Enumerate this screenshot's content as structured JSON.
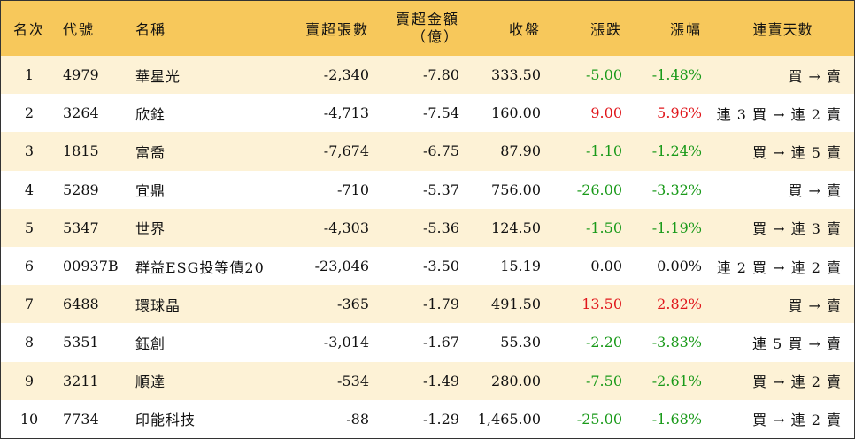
{
  "columns": {
    "rank": "名次",
    "code": "代號",
    "name": "名稱",
    "net_sell_lots": "賣超張數",
    "net_sell_amount_l1": "賣超金額",
    "net_sell_amount_l2": "（億）",
    "close": "收盤",
    "change": "漲跌",
    "change_pct": "漲幅",
    "consecutive_days": "連賣天數"
  },
  "colors": {
    "header_bg": "#f7c85b",
    "stripe_bg": "#fdf2d6",
    "up": "#e0161b",
    "down": "#1a9a1a"
  },
  "rows": [
    {
      "rank": "1",
      "code": "4979",
      "name": "華星光",
      "lots": "-2,340",
      "amount": "-7.80",
      "close": "333.50",
      "change": "-5.00",
      "pct": "-1.48%",
      "days": "買 → 賣",
      "trend": "down"
    },
    {
      "rank": "2",
      "code": "3264",
      "name": "欣銓",
      "lots": "-4,713",
      "amount": "-7.54",
      "close": "160.00",
      "change": "9.00",
      "pct": "5.96%",
      "days": "連 3 買 → 連 2 賣",
      "trend": "up"
    },
    {
      "rank": "3",
      "code": "1815",
      "name": "富喬",
      "lots": "-7,674",
      "amount": "-6.75",
      "close": "87.90",
      "change": "-1.10",
      "pct": "-1.24%",
      "days": "買 → 連 5 賣",
      "trend": "down"
    },
    {
      "rank": "4",
      "code": "5289",
      "name": "宜鼎",
      "lots": "-710",
      "amount": "-5.37",
      "close": "756.00",
      "change": "-26.00",
      "pct": "-3.32%",
      "days": "買 → 賣",
      "trend": "down"
    },
    {
      "rank": "5",
      "code": "5347",
      "name": "世界",
      "lots": "-4,303",
      "amount": "-5.36",
      "close": "124.50",
      "change": "-1.50",
      "pct": "-1.19%",
      "days": "買 → 連 3 賣",
      "trend": "down"
    },
    {
      "rank": "6",
      "code": "00937B",
      "name": "群益ESG投等債20",
      "lots": "-23,046",
      "amount": "-3.50",
      "close": "15.19",
      "change": "0.00",
      "pct": "0.00%",
      "days": "連 2 買 → 連 2 賣",
      "trend": "neutral"
    },
    {
      "rank": "7",
      "code": "6488",
      "name": "環球晶",
      "lots": "-365",
      "amount": "-1.79",
      "close": "491.50",
      "change": "13.50",
      "pct": "2.82%",
      "days": "買 → 賣",
      "trend": "up"
    },
    {
      "rank": "8",
      "code": "5351",
      "name": "鈺創",
      "lots": "-3,014",
      "amount": "-1.67",
      "close": "55.30",
      "change": "-2.20",
      "pct": "-3.83%",
      "days": "連 5 買 → 賣",
      "trend": "down"
    },
    {
      "rank": "9",
      "code": "3211",
      "name": "順達",
      "lots": "-534",
      "amount": "-1.49",
      "close": "280.00",
      "change": "-7.50",
      "pct": "-2.61%",
      "days": "買 → 連 2 賣",
      "trend": "down"
    },
    {
      "rank": "10",
      "code": "7734",
      "name": "印能科技",
      "lots": "-88",
      "amount": "-1.29",
      "close": "1,465.00",
      "change": "-25.00",
      "pct": "-1.68%",
      "days": "買 → 連 2 賣",
      "trend": "down"
    }
  ]
}
